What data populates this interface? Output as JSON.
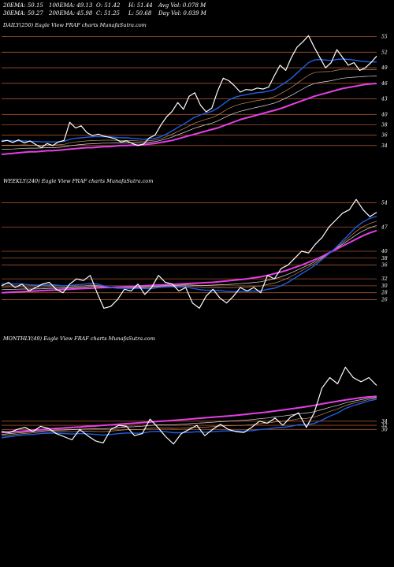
{
  "header": {
    "rows": [
      [
        "20EMA: 50.15",
        "100EMA: 49.13",
        "O: 51.42",
        "H: 51.44",
        "Avg Vol: 0.078  M"
      ],
      [
        "30EMA: 50.27",
        "200EMA: 45.98",
        "C: 51.25",
        "L: 50.68",
        "Day Vol: 0.039 M"
      ]
    ]
  },
  "colors": {
    "background": "#000000",
    "price": "#ffffff",
    "ema20": "#1f5fe0",
    "ema200": "#e53fe5",
    "ema_thin": "#c89060",
    "level_line": "#a0522d"
  },
  "chart_data": [
    {
      "type": "line",
      "title": "DAILY(250) Eagle  View  FRAF charts MunafaSutra.com",
      "y_ticks": [
        55,
        52,
        49,
        46,
        43,
        40,
        38,
        36,
        34
      ],
      "ylim": [
        32,
        56
      ],
      "series": [
        {
          "key": "price",
          "values": [
            34.8,
            35.0,
            34.6,
            35.1,
            34.5,
            34.9,
            34.2,
            33.6,
            34.4,
            34.0,
            34.7,
            35.0,
            38.5,
            37.4,
            37.8,
            36.5,
            35.9,
            36.2,
            35.8,
            35.6,
            35.3,
            34.7,
            34.9,
            34.4,
            34.0,
            34.3,
            35.5,
            36.0,
            37.9,
            39.5,
            40.6,
            42.3,
            41.0,
            43.5,
            44.2,
            41.8,
            40.5,
            41.2,
            44.5,
            47.0,
            46.5,
            45.5,
            44.3,
            44.8,
            44.7,
            45.1,
            44.9,
            45.3,
            47.5,
            49.5,
            48.5,
            51.0,
            53.0,
            54.0,
            55.2,
            53.0,
            51.0,
            49.0,
            50.0,
            52.5,
            51.0,
            49.5,
            50.0,
            48.5,
            49.0,
            50.0,
            51.25
          ]
        },
        {
          "key": "ema20",
          "values": [
            35.0,
            35.0,
            34.9,
            34.9,
            34.9,
            34.8,
            34.8,
            34.7,
            34.7,
            34.7,
            34.7,
            34.8,
            35.2,
            35.4,
            35.5,
            35.6,
            35.7,
            35.7,
            35.7,
            35.7,
            35.6,
            35.5,
            35.5,
            35.4,
            35.3,
            35.2,
            35.3,
            35.4,
            35.7,
            36.2,
            36.8,
            37.5,
            38.1,
            38.8,
            39.5,
            39.9,
            40.3,
            40.6,
            41.2,
            42.0,
            42.8,
            43.3,
            43.6,
            43.8,
            44.0,
            44.2,
            44.3,
            44.5,
            44.8,
            45.5,
            46.2,
            47.0,
            48.0,
            49.0,
            50.0,
            50.5,
            50.6,
            50.5,
            50.4,
            50.6,
            50.7,
            50.6,
            50.5,
            50.3,
            50.2,
            50.1,
            50.15
          ]
        },
        {
          "key": "ema200",
          "values": [
            32.3,
            32.4,
            32.5,
            32.6,
            32.7,
            32.8,
            32.8,
            32.9,
            33.0,
            33.0,
            33.1,
            33.2,
            33.3,
            33.4,
            33.5,
            33.6,
            33.6,
            33.7,
            33.8,
            33.8,
            33.9,
            34.0,
            34.0,
            34.1,
            34.1,
            34.2,
            34.3,
            34.4,
            34.6,
            34.8,
            35.0,
            35.3,
            35.6,
            35.9,
            36.2,
            36.5,
            36.8,
            37.1,
            37.4,
            37.8,
            38.2,
            38.6,
            39.0,
            39.3,
            39.6,
            39.9,
            40.2,
            40.5,
            40.8,
            41.1,
            41.5,
            41.9,
            42.3,
            42.7,
            43.1,
            43.5,
            43.8,
            44.1,
            44.4,
            44.7,
            45.0,
            45.2,
            45.4,
            45.6,
            45.8,
            45.9,
            45.98
          ]
        }
      ]
    },
    {
      "type": "line",
      "title": "WEEKLY(240) Eagle  View  FRAF charts MunafaSutra.com",
      "y_ticks": [
        54,
        47,
        40,
        38,
        36,
        32,
        30,
        28,
        26
      ],
      "ylim": [
        22,
        58
      ],
      "series": [
        {
          "key": "price",
          "values": [
            30.0,
            31.0,
            29.5,
            30.5,
            28.5,
            29.5,
            30.5,
            31.0,
            29.0,
            28.0,
            30.5,
            32.0,
            31.5,
            33.0,
            28.0,
            23.5,
            24.0,
            26.0,
            29.0,
            28.5,
            30.5,
            27.5,
            29.5,
            33.0,
            31.0,
            30.5,
            28.5,
            29.5,
            25.0,
            23.5,
            27.0,
            29.0,
            26.5,
            25.0,
            27.0,
            29.5,
            28.5,
            29.5,
            28.0,
            33.0,
            32.0,
            35.0,
            36.0,
            38.0,
            40.0,
            39.5,
            42.0,
            44.0,
            47.0,
            49.0,
            51.0,
            52.0,
            55.0,
            52.0,
            50.0,
            51.25
          ]
        },
        {
          "key": "ema20",
          "values": [
            30.5,
            30.6,
            30.5,
            30.5,
            30.3,
            30.2,
            30.2,
            30.3,
            30.2,
            30.0,
            30.1,
            30.3,
            30.4,
            30.7,
            30.5,
            30.0,
            29.5,
            29.3,
            29.3,
            29.2,
            29.3,
            29.2,
            29.2,
            29.5,
            29.6,
            29.7,
            29.6,
            29.6,
            29.3,
            28.9,
            28.7,
            28.7,
            28.6,
            28.4,
            28.3,
            28.4,
            28.4,
            28.5,
            28.5,
            29.0,
            29.3,
            30.0,
            31.0,
            32.2,
            33.5,
            34.7,
            36.0,
            37.6,
            39.3,
            41.0,
            43.0,
            45.0,
            47.0,
            48.5,
            49.5,
            50.15
          ]
        },
        {
          "key": "ema200",
          "values": [
            28.0,
            28.1,
            28.2,
            28.3,
            28.4,
            28.5,
            28.6,
            28.7,
            28.8,
            28.9,
            29.0,
            29.1,
            29.2,
            29.3,
            29.4,
            29.5,
            29.5,
            29.6,
            29.7,
            29.8,
            29.9,
            30.0,
            30.1,
            30.2,
            30.3,
            30.4,
            30.5,
            30.6,
            30.7,
            30.8,
            30.9,
            31.0,
            31.2,
            31.4,
            31.6,
            31.8,
            32.0,
            32.3,
            32.6,
            33.0,
            33.5,
            34.0,
            34.6,
            35.3,
            36.0,
            36.8,
            37.6,
            38.5,
            39.5,
            40.5,
            41.5,
            42.5,
            43.5,
            44.5,
            45.3,
            45.98
          ]
        }
      ]
    },
    {
      "type": "line",
      "title": "MONTHLY(49) Eagle  View  FRAF charts MunafaSutra.com",
      "y_ticks": [
        34,
        32,
        30
      ],
      "ylim": [
        10,
        70
      ],
      "series": [
        {
          "key": "price",
          "values": [
            29.0,
            28.5,
            30.0,
            31.0,
            29.0,
            31.5,
            30.5,
            28.0,
            26.5,
            25.0,
            30.0,
            27.0,
            24.5,
            23.5,
            30.0,
            32.0,
            31.5,
            27.0,
            28.0,
            35.0,
            31.0,
            26.5,
            23.0,
            28.0,
            30.0,
            32.0,
            27.0,
            30.0,
            32.5,
            30.0,
            29.0,
            28.5,
            31.0,
            34.0,
            33.0,
            35.5,
            32.0,
            36.0,
            38.0,
            31.0,
            38.0,
            50.0,
            55.0,
            52.0,
            60.0,
            55.0,
            53.0,
            55.0,
            51.25
          ]
        },
        {
          "key": "ema20",
          "values": [
            26.0,
            26.5,
            27.0,
            27.4,
            27.6,
            28.0,
            28.2,
            28.2,
            28.0,
            27.8,
            28.0,
            27.9,
            27.6,
            27.3,
            27.6,
            28.0,
            28.3,
            28.2,
            28.2,
            28.9,
            29.1,
            28.9,
            28.4,
            28.4,
            28.6,
            28.9,
            28.7,
            28.9,
            29.2,
            29.3,
            29.3,
            29.2,
            29.4,
            29.9,
            30.2,
            30.8,
            31.0,
            31.5,
            32.3,
            32.2,
            32.9,
            34.5,
            36.4,
            37.9,
            40.1,
            41.5,
            42.6,
            43.8,
            44.5
          ]
        },
        {
          "key": "ema200",
          "values": [
            28.5,
            28.8,
            29.0,
            29.3,
            29.6,
            29.9,
            30.2,
            30.5,
            30.7,
            31.0,
            31.2,
            31.5,
            31.7,
            32.0,
            32.2,
            32.5,
            32.8,
            33.0,
            33.3,
            33.6,
            33.9,
            34.1,
            34.4,
            34.7,
            35.0,
            35.3,
            35.6,
            35.9,
            36.2,
            36.5,
            36.8,
            37.2,
            37.6,
            38.0,
            38.4,
            38.9,
            39.4,
            39.9,
            40.4,
            41.0,
            41.6,
            42.3,
            43.0,
            43.6,
            44.2,
            44.8,
            45.3,
            45.7,
            45.98
          ]
        }
      ]
    }
  ]
}
